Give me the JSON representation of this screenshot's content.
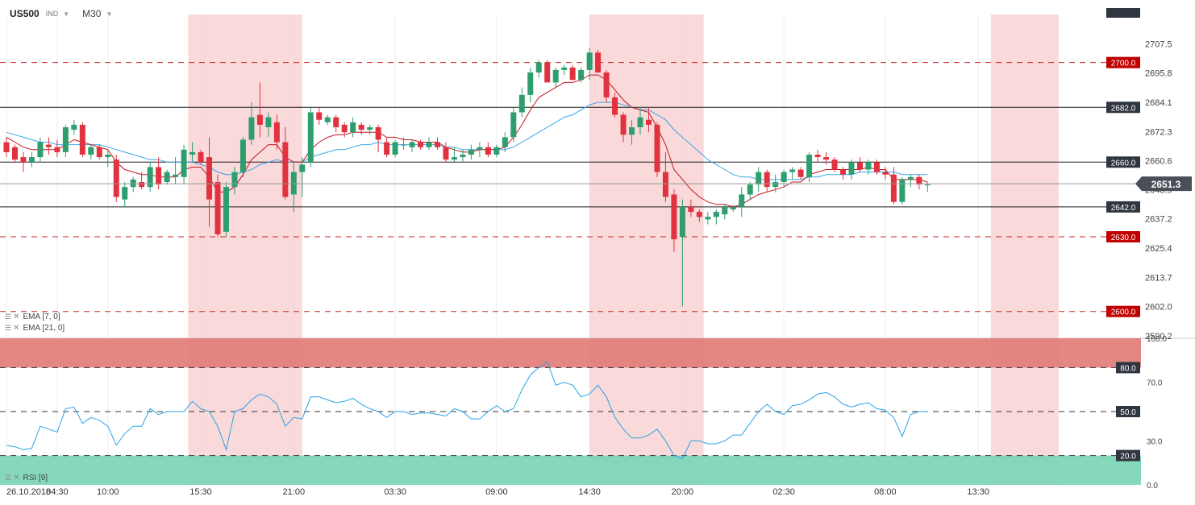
{
  "header": {
    "symbol": "US500",
    "symbol_type": "IND",
    "timeframe": "M30"
  },
  "indicators": {
    "ema_fast": "EMA [7, 0]",
    "ema_slow": "EMA [21, 0]",
    "rsi": "RSI [9]"
  },
  "colors": {
    "bull": "#2e9e6f",
    "bear": "#e0323f",
    "ema_fast": "#c3161c",
    "ema_slow": "#3aa6e8",
    "session": "#f8cfcf",
    "overbought": "#e37f7b",
    "oversold": "#7fd6b9",
    "rsi_line": "#29a3e6"
  },
  "chart_data": {
    "type": "candlestick",
    "instrument": "US500",
    "timeframe": "M30",
    "price_ylim": [
      2590.2,
      2719.3
    ],
    "price_ticks": [
      2707.5,
      2695.8,
      2684.1,
      2672.3,
      2660.6,
      2648.9,
      2637.2,
      2625.4,
      2613.7,
      2602.0,
      2590.2
    ],
    "current_price": 2651.3,
    "x_labels": [
      {
        "label": "26.10.2018",
        "i": 0
      },
      {
        "label": "04:30",
        "i": 6
      },
      {
        "label": "10:00",
        "i": 12
      },
      {
        "label": "15:30",
        "i": 23
      },
      {
        "label": "21:00",
        "i": 34
      },
      {
        "label": "03:30",
        "i": 46
      },
      {
        "label": "09:00",
        "i": 58
      },
      {
        "label": "14:30",
        "i": 69
      },
      {
        "label": "20:00",
        "i": 80
      },
      {
        "label": "02:30",
        "i": 92
      },
      {
        "label": "08:00",
        "i": 104
      },
      {
        "label": "13:30",
        "i": 115
      }
    ],
    "horizontal_levels": [
      {
        "value": 2700.0,
        "label": "2700.0",
        "style": "dashed",
        "color": "#c62828"
      },
      {
        "value": 2682.0,
        "label": "2682.0",
        "style": "solid",
        "color": "#1a1a1a"
      },
      {
        "value": 2660.0,
        "label": "2660.0",
        "style": "solid",
        "color": "#1a1a1a"
      },
      {
        "value": 2642.0,
        "label": "2642.0",
        "style": "solid",
        "color": "#1a1a1a"
      },
      {
        "value": 2630.0,
        "label": "2630.0",
        "style": "dashed",
        "color": "#c62828"
      },
      {
        "value": 2600.0,
        "label": "2600.0",
        "style": "dashed",
        "color": "#c62828"
      }
    ],
    "sessions": [
      {
        "from": 21.5,
        "to": 35.0
      },
      {
        "from": 69.0,
        "to": 82.5
      },
      {
        "from": 116.5,
        "to": 124.5
      }
    ],
    "candles": [
      [
        2668,
        2670,
        2662,
        2664
      ],
      [
        2666,
        2667,
        2660,
        2661
      ],
      [
        2662,
        2664,
        2656,
        2660
      ],
      [
        2660,
        2664,
        2658,
        2662
      ],
      [
        2662,
        2670,
        2660,
        2668
      ],
      [
        2667,
        2670,
        2663,
        2666
      ],
      [
        2666,
        2669,
        2662,
        2664
      ],
      [
        2664,
        2675,
        2662,
        2674
      ],
      [
        2673,
        2677,
        2671,
        2675
      ],
      [
        2675,
        2676,
        2662,
        2663
      ],
      [
        2663,
        2667,
        2661,
        2666
      ],
      [
        2666,
        2667,
        2661,
        2662
      ],
      [
        2662,
        2665,
        2658,
        2663
      ],
      [
        2661,
        2663,
        2644,
        2646
      ],
      [
        2645,
        2652,
        2642,
        2650
      ],
      [
        2650,
        2654,
        2648,
        2653
      ],
      [
        2652,
        2656,
        2649,
        2650
      ],
      [
        2650,
        2660,
        2648,
        2658
      ],
      [
        2658,
        2662,
        2649,
        2651
      ],
      [
        2652,
        2657,
        2651,
        2656
      ],
      [
        2654,
        2662,
        2651,
        2655
      ],
      [
        2654,
        2667,
        2651,
        2665
      ],
      [
        2663,
        2668,
        2660,
        2664
      ],
      [
        2664,
        2665,
        2659,
        2660
      ],
      [
        2662,
        2670,
        2634,
        2645
      ],
      [
        2652,
        2655,
        2630,
        2631
      ],
      [
        2632,
        2652,
        2630,
        2650
      ],
      [
        2650,
        2658,
        2647,
        2656
      ],
      [
        2656,
        2670,
        2654,
        2669
      ],
      [
        2669,
        2684,
        2667,
        2678
      ],
      [
        2679,
        2692,
        2670,
        2675
      ],
      [
        2674,
        2680,
        2670,
        2678
      ],
      [
        2676,
        2679,
        2665,
        2668
      ],
      [
        2668,
        2674,
        2645,
        2646
      ],
      [
        2647,
        2660,
        2640,
        2656
      ],
      [
        2656,
        2662,
        2646,
        2659
      ],
      [
        2660,
        2682,
        2658,
        2680
      ],
      [
        2680,
        2682,
        2675,
        2677
      ],
      [
        2676,
        2679,
        2675,
        2678
      ],
      [
        2678,
        2679,
        2672,
        2674
      ],
      [
        2675,
        2676,
        2670,
        2672
      ],
      [
        2672,
        2678,
        2670,
        2676
      ],
      [
        2675,
        2676,
        2671,
        2673
      ],
      [
        2673,
        2675,
        2671,
        2674
      ],
      [
        2674,
        2675,
        2664,
        2669
      ],
      [
        2668,
        2670,
        2662,
        2663
      ],
      [
        2663,
        2669,
        2662,
        2668
      ],
      [
        2667,
        2670,
        2665,
        2667
      ],
      [
        2666,
        2669,
        2664,
        2668
      ],
      [
        2668,
        2669,
        2665,
        2666
      ],
      [
        2666,
        2670,
        2665,
        2668
      ],
      [
        2668,
        2670,
        2665,
        2666
      ],
      [
        2666,
        2668,
        2660,
        2661
      ],
      [
        2661,
        2666,
        2660,
        2662
      ],
      [
        2662,
        2665,
        2660,
        2663
      ],
      [
        2663,
        2667,
        2661,
        2665
      ],
      [
        2665,
        2668,
        2662,
        2666
      ],
      [
        2666,
        2668,
        2662,
        2663
      ],
      [
        2663,
        2667,
        2662,
        2666
      ],
      [
        2666,
        2672,
        2664,
        2670
      ],
      [
        2670,
        2682,
        2668,
        2680
      ],
      [
        2680,
        2690,
        2678,
        2687
      ],
      [
        2687,
        2698,
        2684,
        2696
      ],
      [
        2696,
        2701,
        2694,
        2700
      ],
      [
        2700,
        2701,
        2692,
        2692
      ],
      [
        2692,
        2698,
        2690,
        2697
      ],
      [
        2697,
        2699,
        2695,
        2698
      ],
      [
        2698,
        2699,
        2693,
        2693
      ],
      [
        2693,
        2698,
        2692,
        2697
      ],
      [
        2697,
        2706,
        2693,
        2704
      ],
      [
        2704,
        2705,
        2696,
        2696
      ],
      [
        2696,
        2697,
        2684,
        2686
      ],
      [
        2686,
        2688,
        2678,
        2679
      ],
      [
        2679,
        2680,
        2668,
        2671
      ],
      [
        2671,
        2677,
        2667,
        2674
      ],
      [
        2674,
        2682,
        2671,
        2678
      ],
      [
        2677,
        2682,
        2672,
        2675
      ],
      [
        2675,
        2676,
        2654,
        2656
      ],
      [
        2656,
        2664,
        2644,
        2646
      ],
      [
        2647,
        2649,
        2624,
        2629
      ],
      [
        2630,
        2645,
        2602,
        2642
      ],
      [
        2642,
        2645,
        2638,
        2640
      ],
      [
        2640,
        2641,
        2636,
        2638
      ],
      [
        2637,
        2640,
        2635,
        2638
      ],
      [
        2638,
        2641,
        2635,
        2640
      ],
      [
        2639,
        2643,
        2637,
        2642
      ],
      [
        2641,
        2643,
        2640,
        2642
      ],
      [
        2642,
        2650,
        2638,
        2647
      ],
      [
        2647,
        2652,
        2645,
        2651
      ],
      [
        2651,
        2658,
        2648,
        2656
      ],
      [
        2656,
        2657,
        2648,
        2650
      ],
      [
        2650,
        2655,
        2648,
        2652
      ],
      [
        2652,
        2657,
        2650,
        2656
      ],
      [
        2656,
        2658,
        2653,
        2657
      ],
      [
        2657,
        2658,
        2653,
        2654
      ],
      [
        2654,
        2664,
        2652,
        2663
      ],
      [
        2663,
        2665,
        2660,
        2662
      ],
      [
        2662,
        2664,
        2659,
        2661
      ],
      [
        2661,
        2662,
        2656,
        2657
      ],
      [
        2657,
        2658,
        2653,
        2655
      ],
      [
        2655,
        2661,
        2653,
        2660
      ],
      [
        2660,
        2662,
        2656,
        2657
      ],
      [
        2657,
        2661,
        2655,
        2660
      ],
      [
        2660,
        2661,
        2655,
        2656
      ],
      [
        2656,
        2658,
        2653,
        2655
      ],
      [
        2655,
        2658,
        2643,
        2644
      ],
      [
        2644,
        2654,
        2643,
        2653
      ],
      [
        2653,
        2655,
        2650,
        2654
      ],
      [
        2654,
        2655,
        2649,
        2651
      ],
      [
        2651,
        2652,
        2648,
        2651
      ]
    ],
    "ema_fast": [
      2670,
      2668,
      2666,
      2665,
      2665,
      2665,
      2665,
      2667,
      2669,
      2668,
      2667,
      2666,
      2665,
      2660,
      2657,
      2656,
      2655,
      2655,
      2654,
      2654,
      2654,
      2657,
      2658,
      2658,
      2654,
      2648,
      2648,
      2650,
      2655,
      2661,
      2664,
      2667,
      2667,
      2662,
      2660,
      2660,
      2665,
      2668,
      2670,
      2671,
      2671,
      2672,
      2672,
      2672,
      2672,
      2670,
      2670,
      2669,
      2669,
      2668,
      2668,
      2668,
      2666,
      2665,
      2664,
      2664,
      2665,
      2665,
      2665,
      2666,
      2670,
      2675,
      2681,
      2686,
      2688,
      2690,
      2692,
      2692,
      2693,
      2695,
      2695,
      2693,
      2689,
      2685,
      2682,
      2681,
      2680,
      2674,
      2667,
      2657,
      2653,
      2649,
      2646,
      2644,
      2643,
      2643,
      2642,
      2643,
      2645,
      2647,
      2648,
      2649,
      2650,
      2652,
      2652,
      2655,
      2656,
      2657,
      2657,
      2657,
      2657,
      2657,
      2658,
      2657,
      2657,
      2653,
      2653,
      2653,
      2653,
      2652
    ],
    "ema_slow": [
      2672,
      2671,
      2670,
      2669,
      2668,
      2668,
      2667,
      2667,
      2667,
      2667,
      2667,
      2667,
      2666,
      2665,
      2664,
      2663,
      2662,
      2661,
      2661,
      2660,
      2660,
      2660,
      2660,
      2659,
      2658,
      2656,
      2655,
      2655,
      2656,
      2657,
      2659,
      2660,
      2661,
      2660,
      2660,
      2660,
      2662,
      2663,
      2664,
      2665,
      2665,
      2666,
      2667,
      2667,
      2668,
      2667,
      2667,
      2667,
      2667,
      2667,
      2667,
      2667,
      2666,
      2666,
      2665,
      2665,
      2665,
      2665,
      2665,
      2665,
      2666,
      2668,
      2670,
      2672,
      2674,
      2676,
      2678,
      2679,
      2681,
      2683,
      2684,
      2684,
      2684,
      2683,
      2682,
      2681,
      2681,
      2679,
      2677,
      2673,
      2670,
      2667,
      2664,
      2661,
      2659,
      2657,
      2655,
      2654,
      2654,
      2653,
      2653,
      2653,
      2653,
      2653,
      2653,
      2654,
      2654,
      2655,
      2655,
      2655,
      2655,
      2656,
      2656,
      2656,
      2656,
      2656,
      2655,
      2655,
      2655,
      2655
    ],
    "rsi": {
      "title": "RSI [9]",
      "ylim": [
        0,
        100
      ],
      "ticks": [
        100.0,
        70.0,
        30.0,
        0.0
      ],
      "levels": [
        {
          "value": 80.0,
          "label": "80.0"
        },
        {
          "value": 50.0,
          "label": "50.0"
        },
        {
          "value": 20.0,
          "label": "20.0"
        }
      ],
      "values": [
        27,
        26,
        24,
        25,
        40,
        38,
        36,
        52,
        53,
        42,
        46,
        44,
        40,
        27,
        35,
        40,
        40,
        52,
        48,
        50,
        50,
        50,
        57,
        52,
        50,
        40,
        24,
        50,
        52,
        58,
        62,
        60,
        55,
        40,
        46,
        45,
        60,
        60,
        58,
        56,
        57,
        59,
        55,
        52,
        50,
        46,
        50,
        50,
        48,
        49,
        49,
        48,
        47,
        52,
        50,
        45,
        45,
        50,
        54,
        50,
        52,
        65,
        75,
        80,
        84,
        68,
        70,
        68,
        60,
        62,
        68,
        60,
        46,
        38,
        32,
        32,
        34,
        38,
        30,
        20,
        18,
        30,
        30,
        28,
        28,
        30,
        34,
        34,
        42,
        50,
        55,
        50,
        48,
        54,
        55,
        58,
        62,
        63,
        60,
        55,
        53,
        55,
        56,
        52,
        51,
        46,
        33,
        48,
        50,
        50
      ]
    }
  }
}
